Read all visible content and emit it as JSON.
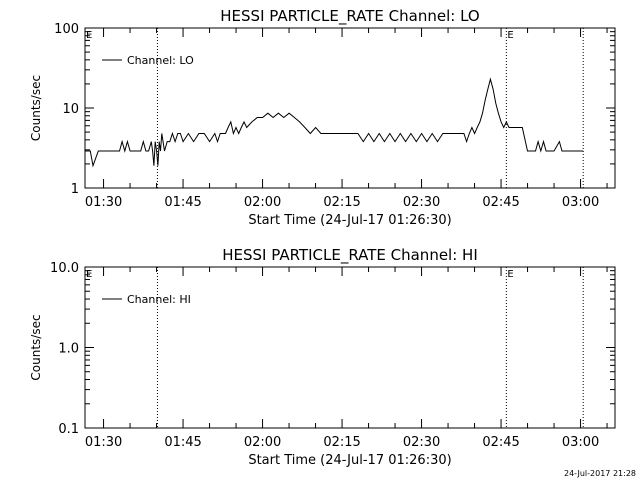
{
  "chart_data": [
    {
      "type": "line",
      "title": "HESSI PARTICLE_RATE Channel: LO",
      "xlabel": "Start Time (24-Jul-17 01:26:30)",
      "ylabel": "Counts/sec",
      "yscale": "log",
      "ylim": [
        1,
        100
      ],
      "ytick_labels": [
        "1",
        "10",
        "100"
      ],
      "ytick_values": [
        1,
        10,
        100
      ],
      "xlim": [
        "01:26:30",
        "03:06:30"
      ],
      "xtick_labels": [
        "01:30",
        "01:45",
        "02:00",
        "02:15",
        "02:30",
        "02:45",
        "03:00"
      ],
      "legend": {
        "position": "top-left",
        "entries": [
          "Channel: LO"
        ]
      },
      "markers": [
        {
          "time": "01:40:10",
          "label": ""
        },
        {
          "time": "02:46:00",
          "label": "E"
        },
        {
          "time": "03:00:30",
          "label": ""
        }
      ],
      "corner_label": "E",
      "series": [
        {
          "name": "Channel: LO",
          "x": [
            "01:26:30",
            "01:27:30",
            "01:28:00",
            "01:29:00",
            "01:33:00",
            "01:33:30",
            "01:34:00",
            "01:34:30",
            "01:35:00",
            "01:35:30",
            "01:37:00",
            "01:37:30",
            "01:38:00",
            "01:38:30",
            "01:39:00",
            "01:39:15",
            "01:39:30",
            "01:39:45",
            "01:40:00",
            "01:40:15",
            "01:40:30",
            "01:40:45",
            "01:41:00",
            "01:41:30",
            "01:42:00",
            "01:42:30",
            "01:43:00",
            "01:43:30",
            "01:44:00",
            "01:44:30",
            "01:45:00",
            "01:46:00",
            "01:47:00",
            "01:48:00",
            "01:49:00",
            "01:50:00",
            "01:51:00",
            "01:51:30",
            "01:52:00",
            "01:53:00",
            "01:53:30",
            "01:54:00",
            "01:54:30",
            "01:55:00",
            "01:55:30",
            "01:56:00",
            "01:56:30",
            "01:57:00",
            "01:58:00",
            "01:59:00",
            "02:00:00",
            "02:01:00",
            "02:02:00",
            "02:03:00",
            "02:04:00",
            "02:05:00",
            "02:06:00",
            "02:07:00",
            "02:08:00",
            "02:09:00",
            "02:10:00",
            "02:11:00",
            "02:12:00",
            "02:14:00",
            "02:15:00",
            "02:16:00",
            "02:17:00",
            "02:18:00",
            "02:19:00",
            "02:20:00",
            "02:21:00",
            "02:22:00",
            "02:23:00",
            "02:24:00",
            "02:25:00",
            "02:26:00",
            "02:27:00",
            "02:28:00",
            "02:29:00",
            "02:30:00",
            "02:31:00",
            "02:32:00",
            "02:33:00",
            "02:34:00",
            "02:35:00",
            "02:36:00",
            "02:37:00",
            "02:38:00",
            "02:38:30",
            "02:39:00",
            "02:39:30",
            "02:40:00",
            "02:40:30",
            "02:41:00",
            "02:41:30",
            "02:42:00",
            "02:42:30",
            "02:43:00",
            "02:43:30",
            "02:44:00",
            "02:44:30",
            "02:45:00",
            "02:45:30",
            "02:46:00",
            "02:46:30",
            "02:47:00",
            "02:48:00",
            "02:49:00",
            "02:50:00",
            "02:51:00",
            "02:51:30",
            "02:52:00",
            "02:52:30",
            "02:53:00",
            "02:53:30",
            "02:54:00",
            "02:55:00",
            "02:56:00",
            "02:56:30",
            "02:57:00",
            "02:58:00",
            "03:00:00",
            "03:00:30"
          ],
          "y": [
            2.9,
            2.9,
            1.9,
            2.9,
            2.9,
            3.8,
            2.9,
            3.8,
            2.9,
            2.9,
            2.9,
            3.8,
            2.9,
            2.9,
            3.8,
            2.9,
            1.9,
            3.8,
            2.9,
            1.9,
            3.8,
            2.9,
            4.8,
            2.9,
            3.8,
            3.8,
            4.8,
            3.8,
            4.8,
            4.8,
            3.8,
            4.8,
            3.8,
            4.8,
            4.8,
            3.8,
            4.8,
            3.8,
            4.8,
            4.8,
            5.7,
            6.7,
            4.8,
            5.7,
            4.8,
            5.7,
            6.7,
            5.7,
            6.7,
            7.6,
            7.6,
            8.6,
            7.6,
            8.6,
            7.6,
            8.6,
            7.6,
            6.7,
            5.7,
            4.8,
            5.7,
            4.8,
            4.8,
            4.8,
            4.8,
            4.8,
            4.8,
            4.8,
            3.8,
            4.8,
            3.8,
            4.8,
            3.8,
            4.8,
            3.8,
            4.8,
            3.8,
            4.8,
            3.8,
            4.8,
            3.8,
            4.8,
            3.8,
            4.8,
            4.8,
            4.8,
            4.8,
            4.8,
            3.8,
            4.8,
            5.7,
            4.8,
            5.7,
            6.7,
            8.6,
            12.4,
            17.2,
            22.9,
            17.2,
            11.4,
            8.6,
            6.7,
            5.7,
            6.7,
            5.7,
            5.7,
            5.7,
            5.7,
            2.9,
            2.9,
            2.9,
            3.8,
            2.9,
            3.8,
            2.9,
            2.9,
            2.9,
            3.8,
            2.9,
            2.9,
            2.9,
            2.9,
            2.9
          ]
        }
      ]
    },
    {
      "type": "line",
      "title": "HESSI PARTICLE_RATE Channel: HI",
      "xlabel": "Start Time (24-Jul-17 01:26:30)",
      "ylabel": "Counts/sec",
      "yscale": "log",
      "ylim": [
        0.1,
        10
      ],
      "ytick_labels": [
        "0.1",
        "1.0",
        "10.0"
      ],
      "ytick_values": [
        0.1,
        1,
        10
      ],
      "xlim": [
        "01:26:30",
        "03:06:30"
      ],
      "xtick_labels": [
        "01:30",
        "01:45",
        "02:00",
        "02:15",
        "02:30",
        "02:45",
        "03:00"
      ],
      "legend": {
        "position": "top-left",
        "entries": [
          "Channel: HI"
        ]
      },
      "markers": [
        {
          "time": "01:40:10",
          "label": ""
        },
        {
          "time": "02:46:00",
          "label": "E"
        },
        {
          "time": "03:00:30",
          "label": ""
        }
      ],
      "corner_label": "E",
      "series": [
        {
          "name": "Channel: HI",
          "x": [],
          "y": []
        }
      ]
    }
  ],
  "footer": {
    "timestamp": "24-Jul-2017 21:28"
  }
}
